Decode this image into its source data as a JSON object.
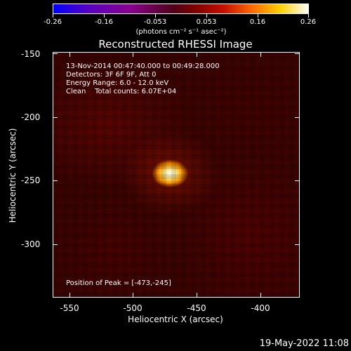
{
  "colorbar": {
    "tick_labels": [
      "-0.26",
      "-0.16",
      "-0.053",
      "0.053",
      "0.16",
      "0.26"
    ],
    "units": "(photons cm⁻² s⁻¹ asec⁻²)"
  },
  "title": "Reconstructed RHESSI Image",
  "info": {
    "line1": "13-Nov-2014 00:47:40.000 to 00:49:28.000",
    "line2": "Detectors: 3F 6F 9F, Att 0",
    "line3": "Energy Range: 6.0 - 12.0 keV",
    "line4": "Clean    Total counts: 6.07E+04",
    "peak": "Position of Peak = [-473,-245]"
  },
  "axes": {
    "xlabel": "Heliocentric X (arcsec)",
    "ylabel": "Heliocentric Y (arcsec)",
    "xticks": [
      "-550",
      "-500",
      "-450",
      "-400"
    ],
    "yticks": [
      "-150",
      "-200",
      "-250",
      "-300"
    ]
  },
  "timestamp": "19-May-2022 11:08",
  "colors": {
    "peak": "#ffffff",
    "background": "#3a0302"
  }
}
